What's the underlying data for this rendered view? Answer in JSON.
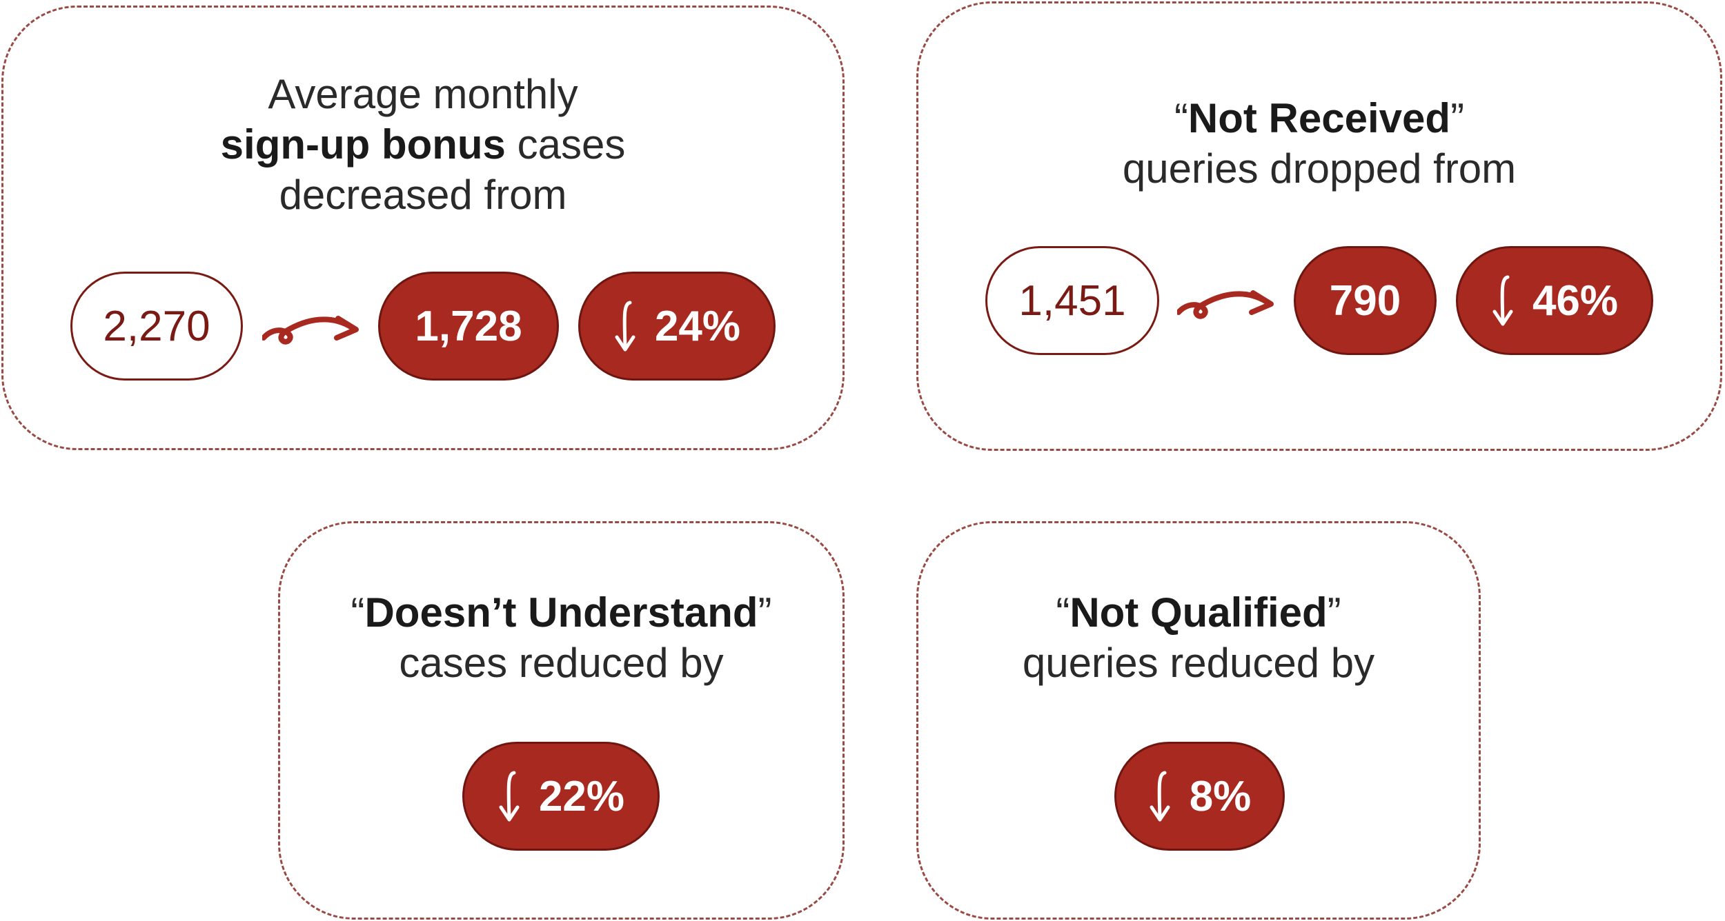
{
  "cards": [
    {
      "heading": [
        [
          {
            "text": "Average monthly"
          }
        ],
        [
          {
            "text": "sign-up bonus",
            "bold": true
          },
          {
            "text": " cases"
          }
        ],
        [
          {
            "text": "decreased from"
          }
        ]
      ],
      "from": "2,270",
      "to": "1,728",
      "change": "24%"
    },
    {
      "heading": [
        [
          {
            "text": "“"
          },
          {
            "text": "Not Received",
            "bold": true
          },
          {
            "text": "”"
          }
        ],
        [
          {
            "text": "queries dropped from"
          }
        ]
      ],
      "from": "1,451",
      "to": "790",
      "change": "46%"
    },
    {
      "heading": [
        [
          {
            "text": "“"
          },
          {
            "text": "Doesn’t Understand",
            "bold": true
          },
          {
            "text": "”"
          }
        ],
        [
          {
            "text": "cases reduced by"
          }
        ]
      ],
      "change": "22%"
    },
    {
      "heading": [
        [
          {
            "text": "“"
          },
          {
            "text": "Not Qualified",
            "bold": true
          },
          {
            "text": "”"
          }
        ],
        [
          {
            "text": "queries reduced by"
          }
        ]
      ],
      "change": "8%"
    }
  ]
}
